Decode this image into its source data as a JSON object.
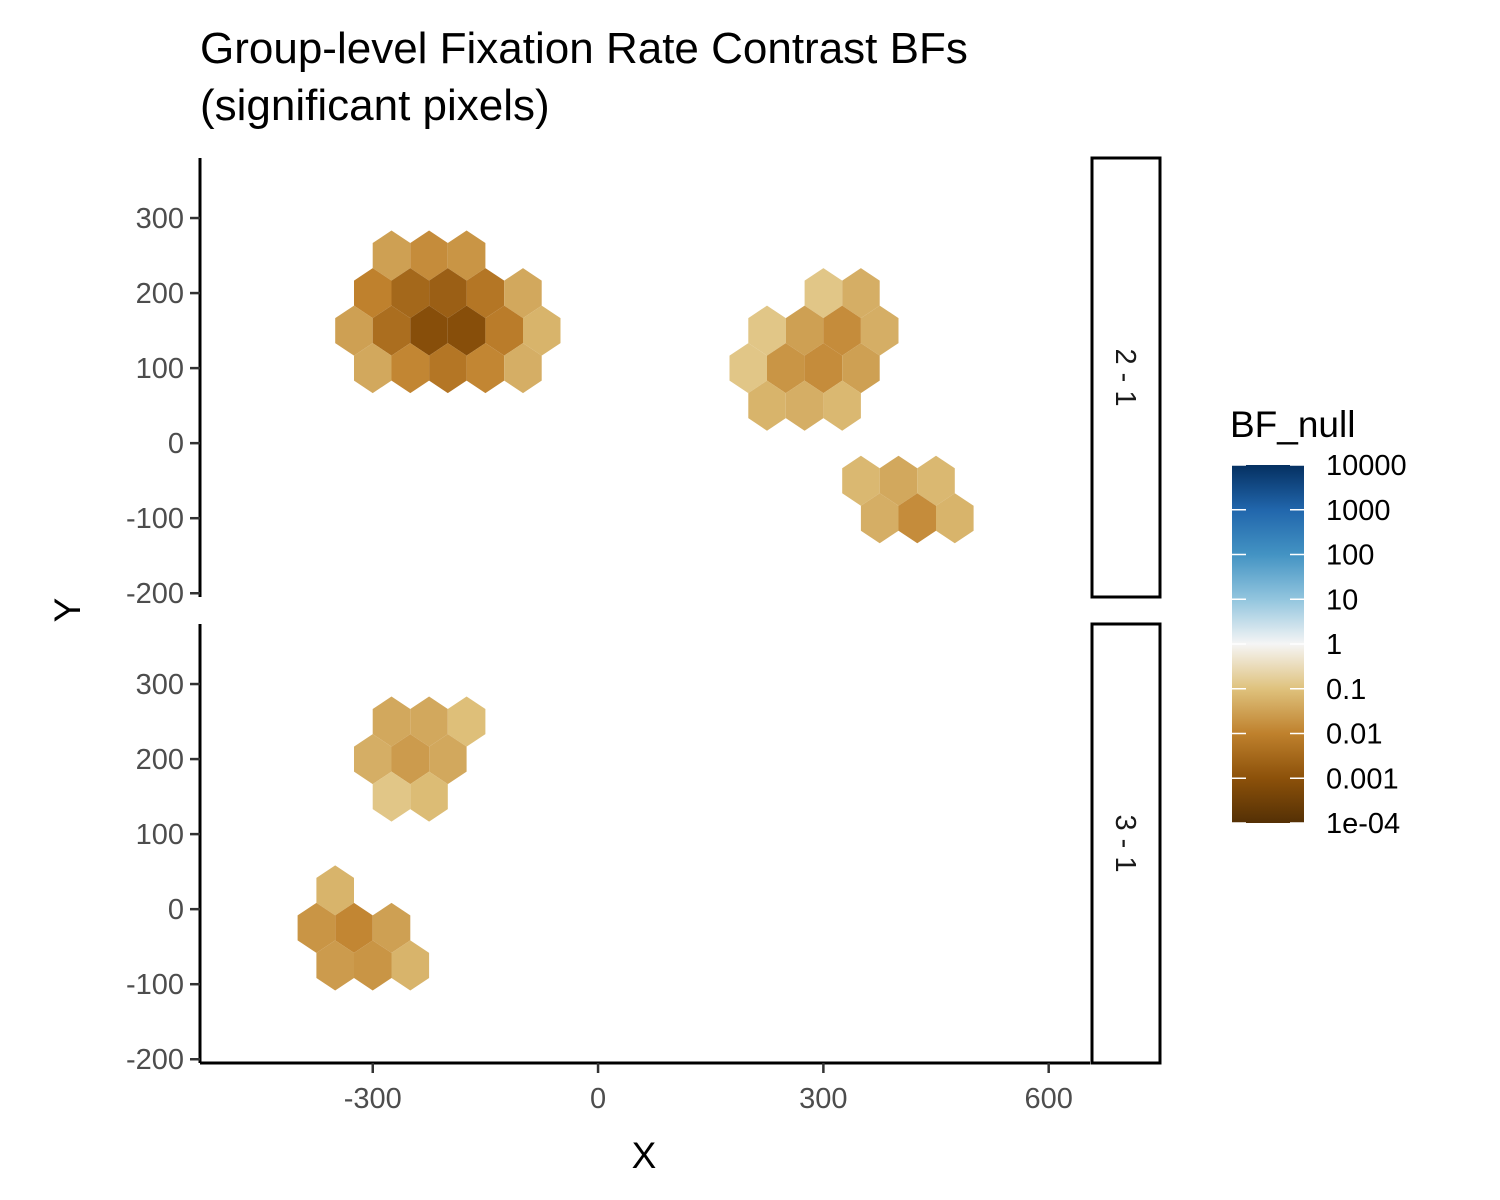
{
  "chart_data": {
    "type": "heatmap",
    "geometry": "hexbin",
    "title": "Group-level Fixation Rate Contrast BFs",
    "subtitle": "(significant pixels)",
    "xlabel": "X",
    "ylabel": "Y",
    "xlim": [
      -530,
      655
    ],
    "ylim": [
      -205,
      380
    ],
    "x_ticks": [
      -300,
      0,
      300,
      600
    ],
    "x_tick_labels": [
      "-300",
      "0",
      "300",
      "600"
    ],
    "y_ticks": [
      -200,
      -100,
      0,
      100,
      200,
      300
    ],
    "y_tick_labels": [
      "-200",
      "-100",
      "0",
      "100",
      "200",
      "300"
    ],
    "grid": false,
    "legend": {
      "title": "BF_null",
      "position": "right",
      "scale": "log10",
      "range": [
        0.0001,
        10000
      ],
      "breaks": [
        10000,
        1000,
        100,
        10,
        1,
        0.1,
        0.01,
        0.001,
        0.0001
      ],
      "labels": [
        "10000",
        "1000",
        "100",
        "10",
        "1",
        "0.1",
        "0.01",
        "0.001",
        "1e-04"
      ],
      "colors": [
        "#67001f",
        "#8c510a",
        "#bf812d",
        "#dfc27d",
        "#f6e8c3",
        "#f5f5f5",
        "#c7eae5",
        "#80cdc1",
        "#35978f",
        "#01665e",
        "#053061"
      ],
      "palette": {
        "stops": [
          {
            "log": -4,
            "color": "#543005"
          },
          {
            "log": -3,
            "color": "#8c510a"
          },
          {
            "log": -2,
            "color": "#bf812d"
          },
          {
            "log": -1,
            "color": "#dfc27d"
          },
          {
            "log": 0,
            "color": "#f5f5f5"
          },
          {
            "log": 1,
            "color": "#92c5de"
          },
          {
            "log": 2,
            "color": "#4393c3"
          },
          {
            "log": 3,
            "color": "#2166ac"
          },
          {
            "log": 4,
            "color": "#053061"
          }
        ]
      }
    },
    "facets": [
      {
        "label": "2 - 1",
        "cells": [
          {
            "x": -275,
            "y": 250,
            "bf": 0.03
          },
          {
            "x": -225,
            "y": 250,
            "bf": 0.015
          },
          {
            "x": -175,
            "y": 250,
            "bf": 0.02
          },
          {
            "x": -300,
            "y": 200,
            "bf": 0.01
          },
          {
            "x": -250,
            "y": 200,
            "bf": 0.003
          },
          {
            "x": -200,
            "y": 200,
            "bf": 0.002
          },
          {
            "x": -150,
            "y": 200,
            "bf": 0.006
          },
          {
            "x": -100,
            "y": 200,
            "bf": 0.04
          },
          {
            "x": -325,
            "y": 150,
            "bf": 0.03
          },
          {
            "x": -275,
            "y": 150,
            "bf": 0.004
          },
          {
            "x": -225,
            "y": 150,
            "bf": 0.0008
          },
          {
            "x": -175,
            "y": 150,
            "bf": 0.0008
          },
          {
            "x": -125,
            "y": 150,
            "bf": 0.008
          },
          {
            "x": -75,
            "y": 150,
            "bf": 0.06
          },
          {
            "x": -300,
            "y": 100,
            "bf": 0.04
          },
          {
            "x": -250,
            "y": 100,
            "bf": 0.012
          },
          {
            "x": -200,
            "y": 100,
            "bf": 0.006
          },
          {
            "x": -150,
            "y": 100,
            "bf": 0.012
          },
          {
            "x": -100,
            "y": 100,
            "bf": 0.05
          },
          {
            "x": 300,
            "y": 200,
            "bf": 0.12
          },
          {
            "x": 350,
            "y": 200,
            "bf": 0.05
          },
          {
            "x": 225,
            "y": 150,
            "bf": 0.12
          },
          {
            "x": 275,
            "y": 150,
            "bf": 0.03
          },
          {
            "x": 325,
            "y": 150,
            "bf": 0.015
          },
          {
            "x": 375,
            "y": 150,
            "bf": 0.05
          },
          {
            "x": 200,
            "y": 100,
            "bf": 0.12
          },
          {
            "x": 250,
            "y": 100,
            "bf": 0.02
          },
          {
            "x": 300,
            "y": 100,
            "bf": 0.015
          },
          {
            "x": 350,
            "y": 100,
            "bf": 0.03
          },
          {
            "x": 225,
            "y": 50,
            "bf": 0.06
          },
          {
            "x": 275,
            "y": 50,
            "bf": 0.05
          },
          {
            "x": 325,
            "y": 50,
            "bf": 0.07
          },
          {
            "x": 350,
            "y": -50,
            "bf": 0.07
          },
          {
            "x": 400,
            "y": -50,
            "bf": 0.04
          },
          {
            "x": 450,
            "y": -50,
            "bf": 0.07
          },
          {
            "x": 375,
            "y": -100,
            "bf": 0.05
          },
          {
            "x": 425,
            "y": -100,
            "bf": 0.015
          },
          {
            "x": 475,
            "y": -100,
            "bf": 0.06
          }
        ]
      },
      {
        "label": "3 - 1",
        "cells": [
          {
            "x": -275,
            "y": 250,
            "bf": 0.04
          },
          {
            "x": -225,
            "y": 250,
            "bf": 0.04
          },
          {
            "x": -175,
            "y": 250,
            "bf": 0.09
          },
          {
            "x": -300,
            "y": 200,
            "bf": 0.05
          },
          {
            "x": -250,
            "y": 200,
            "bf": 0.025
          },
          {
            "x": -200,
            "y": 200,
            "bf": 0.04
          },
          {
            "x": -275,
            "y": 150,
            "bf": 0.12
          },
          {
            "x": -225,
            "y": 150,
            "bf": 0.08
          },
          {
            "x": -350,
            "y": 25,
            "bf": 0.06
          },
          {
            "x": -375,
            "y": -25,
            "bf": 0.02
          },
          {
            "x": -325,
            "y": -25,
            "bf": 0.012
          },
          {
            "x": -275,
            "y": -25,
            "bf": 0.03
          },
          {
            "x": -350,
            "y": -75,
            "bf": 0.025
          },
          {
            "x": -300,
            "y": -75,
            "bf": 0.02
          },
          {
            "x": -250,
            "y": -75,
            "bf": 0.06
          }
        ]
      }
    ]
  }
}
